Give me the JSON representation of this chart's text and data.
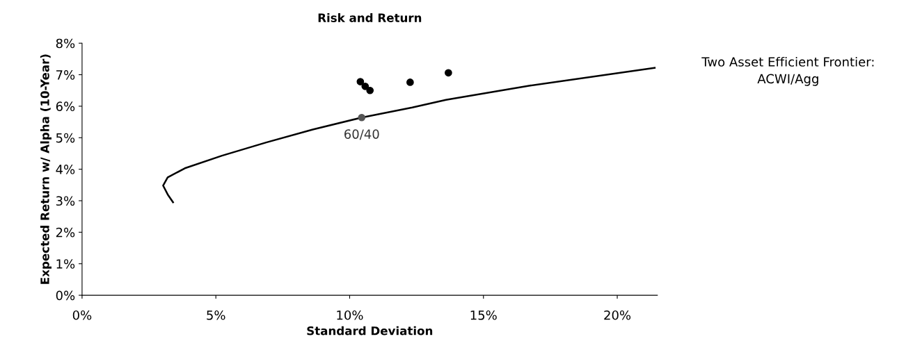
{
  "chart_data": {
    "type": "line",
    "title": "Risk and Return",
    "xlabel": "Standard Deviation",
    "ylabel": "Expected Return w/ Alpha (10-Year)",
    "xlim": [
      0,
      21.5
    ],
    "ylim": [
      0,
      8
    ],
    "xticks": [
      {
        "value": 0,
        "label": "0%"
      },
      {
        "value": 5,
        "label": "5%"
      },
      {
        "value": 10,
        "label": "10%"
      },
      {
        "value": 15,
        "label": "15%"
      },
      {
        "value": 20,
        "label": "20%"
      }
    ],
    "yticks": [
      {
        "value": 0,
        "label": "0%"
      },
      {
        "value": 1,
        "label": "1%"
      },
      {
        "value": 2,
        "label": "2%"
      },
      {
        "value": 3,
        "label": "3%"
      },
      {
        "value": 4,
        "label": "4%"
      },
      {
        "value": 5,
        "label": "5%"
      },
      {
        "value": 6,
        "label": "6%"
      },
      {
        "value": 7,
        "label": "7%"
      },
      {
        "value": 8,
        "label": "8%"
      }
    ],
    "grid": false,
    "legend": false,
    "series": [
      {
        "color": "#000000",
        "marker": "none",
        "x": [
          3.4,
          3.2,
          3.03,
          3.2,
          3.84,
          5.23,
          6.88,
          8.62,
          10.45,
          12.34,
          13.6,
          16.7,
          21.4
        ],
        "values": [
          2.95,
          3.2,
          3.48,
          3.74,
          4.03,
          4.43,
          4.85,
          5.26,
          5.64,
          5.96,
          6.2,
          6.65,
          7.22
        ]
      },
      {
        "type": "scatter",
        "color": "#000000",
        "marker": "circle",
        "x": [
          10.4,
          10.58,
          10.76,
          12.26,
          13.69
        ],
        "values": [
          6.78,
          6.63,
          6.5,
          6.76,
          7.06
        ]
      },
      {
        "type": "scatter",
        "color": "#555555",
        "marker": "circle",
        "x": [
          10.45
        ],
        "values": [
          5.64
        ]
      }
    ],
    "annotations": [
      {
        "text": "60/40",
        "x": 10.45,
        "y": 5.64
      },
      "Two Asset Efficient Frontier:\nACWI/Agg"
    ]
  }
}
